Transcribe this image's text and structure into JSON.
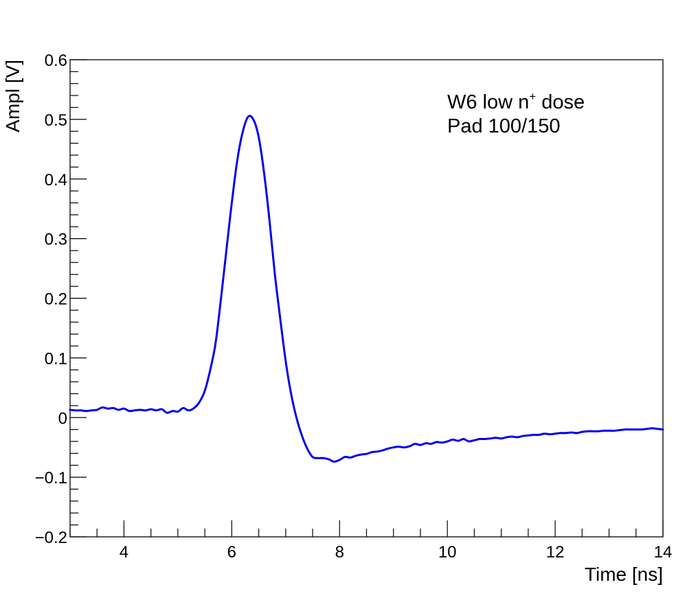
{
  "chart_data": {
    "type": "line",
    "title": "",
    "xlabel": "Time [ns]",
    "ylabel": "Ampl [V]",
    "xlim": [
      3,
      14
    ],
    "ylim": [
      -0.2,
      0.6
    ],
    "xticks": [
      4,
      6,
      8,
      10,
      12,
      14
    ],
    "xtick_labels": [
      "4",
      "6",
      "8",
      "10",
      "12",
      "14"
    ],
    "yticks": [
      -0.2,
      -0.1,
      0,
      0.1,
      0.2,
      0.3,
      0.4,
      0.5,
      0.6
    ],
    "ytick_labels": [
      "−0.2",
      "−0.1",
      "0",
      "0.1",
      "0.2",
      "0.3",
      "0.4",
      "0.5",
      "0.6"
    ],
    "grid": false,
    "line_color": "#0000ee",
    "annotation": {
      "line1_prefix": "W6 low n",
      "line1_sup": "+",
      "line1_suffix": " dose",
      "line2": "Pad 100/150"
    },
    "series": [
      {
        "x": [
          3.0,
          3.1,
          3.2,
          3.3,
          3.4,
          3.5,
          3.6,
          3.7,
          3.8,
          3.9,
          4.0,
          4.1,
          4.2,
          4.3,
          4.4,
          4.5,
          4.6,
          4.7,
          4.8,
          4.9,
          5.0,
          5.1,
          5.2,
          5.3,
          5.4,
          5.5,
          5.6,
          5.7,
          5.8,
          5.9,
          6.0,
          6.1,
          6.2,
          6.3,
          6.4,
          6.5,
          6.6,
          6.7,
          6.8,
          6.9,
          7.0,
          7.1,
          7.2,
          7.3,
          7.4,
          7.5,
          7.6,
          7.7,
          7.8,
          7.9,
          8.0,
          8.1,
          8.2,
          8.3,
          8.4,
          8.5,
          8.6,
          8.7,
          8.8,
          8.9,
          9.0,
          9.1,
          9.2,
          9.3,
          9.4,
          9.5,
          9.6,
          9.7,
          9.8,
          9.9,
          10.0,
          10.1,
          10.2,
          10.3,
          10.4,
          10.5,
          10.6,
          10.7,
          10.8,
          10.9,
          11.0,
          11.1,
          11.2,
          11.3,
          11.4,
          11.5,
          11.6,
          11.7,
          11.8,
          11.9,
          12.0,
          12.1,
          12.2,
          12.3,
          12.4,
          12.5,
          12.6,
          12.7,
          12.8,
          12.9,
          13.0,
          13.1,
          13.2,
          13.3,
          13.4,
          13.5,
          13.6,
          13.7,
          13.8,
          13.9,
          14.0
        ],
        "y": [
          0.013,
          0.012,
          0.012,
          0.011,
          0.012,
          0.013,
          0.017,
          0.015,
          0.016,
          0.013,
          0.015,
          0.011,
          0.012,
          0.013,
          0.012,
          0.014,
          0.012,
          0.014,
          0.008,
          0.011,
          0.01,
          0.016,
          0.012,
          0.016,
          0.026,
          0.045,
          0.08,
          0.125,
          0.2,
          0.28,
          0.36,
          0.43,
          0.478,
          0.504,
          0.5,
          0.47,
          0.41,
          0.33,
          0.24,
          0.165,
          0.095,
          0.04,
          0.0,
          -0.03,
          -0.052,
          -0.066,
          -0.068,
          -0.068,
          -0.07,
          -0.074,
          -0.071,
          -0.066,
          -0.067,
          -0.064,
          -0.062,
          -0.061,
          -0.058,
          -0.057,
          -0.055,
          -0.052,
          -0.05,
          -0.049,
          -0.05,
          -0.048,
          -0.044,
          -0.046,
          -0.043,
          -0.044,
          -0.041,
          -0.042,
          -0.04,
          -0.037,
          -0.039,
          -0.036,
          -0.04,
          -0.038,
          -0.036,
          -0.036,
          -0.035,
          -0.034,
          -0.035,
          -0.033,
          -0.032,
          -0.033,
          -0.031,
          -0.03,
          -0.029,
          -0.029,
          -0.027,
          -0.028,
          -0.027,
          -0.026,
          -0.026,
          -0.025,
          -0.026,
          -0.024,
          -0.023,
          -0.023,
          -0.023,
          -0.022,
          -0.022,
          -0.022,
          -0.021,
          -0.02,
          -0.02,
          -0.02,
          -0.02,
          -0.019,
          -0.018,
          -0.019,
          -0.02
        ]
      }
    ]
  }
}
